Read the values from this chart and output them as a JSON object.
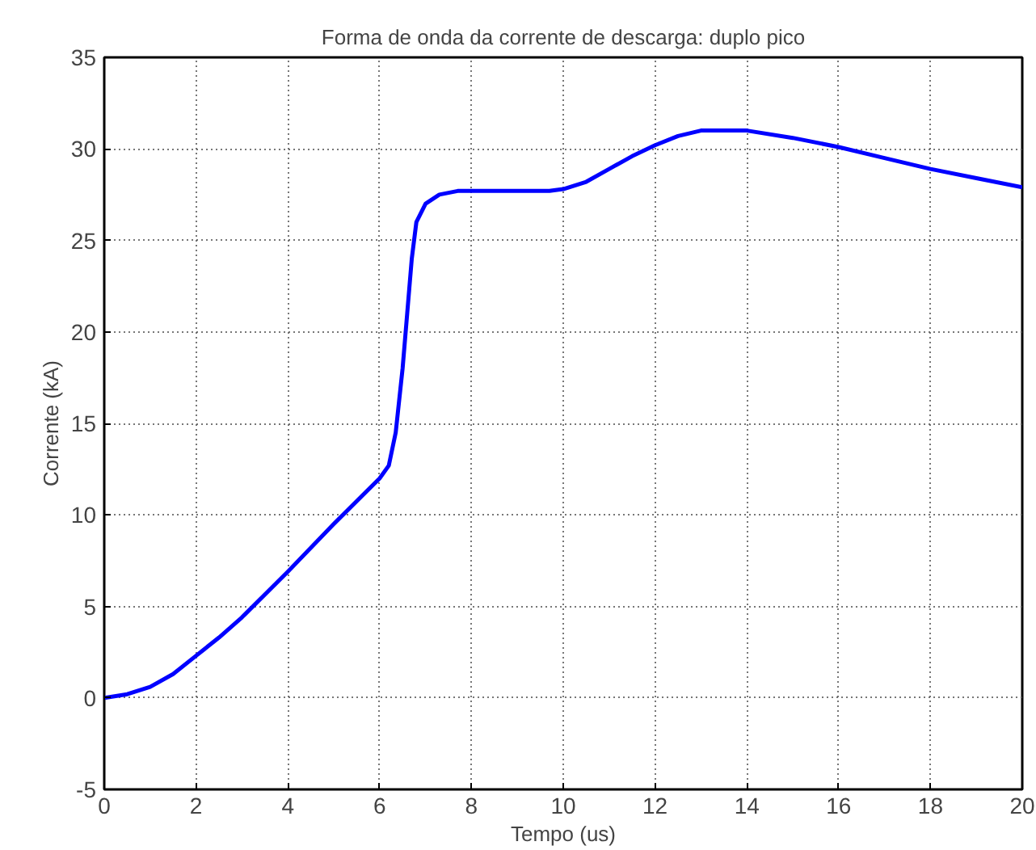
{
  "chart_data": {
    "type": "line",
    "title": "Forma de onda da corrente de descarga: duplo pico",
    "xlabel": "Tempo (us)",
    "ylabel": "Corrente (kA)",
    "series": [
      {
        "color": "#0000ff",
        "x": [
          0,
          0.5,
          1,
          1.5,
          2,
          2.5,
          3,
          4,
          5,
          6,
          6.2,
          6.35,
          6.5,
          6.6,
          6.7,
          6.8,
          7.0,
          7.3,
          7.7,
          8,
          9,
          9.7,
          10,
          10.5,
          11,
          11.5,
          12,
          12.5,
          13,
          13.5,
          14,
          15,
          16,
          17,
          18,
          19,
          20
        ],
        "values": [
          0,
          0.2,
          0.6,
          1.3,
          2.3,
          3.3,
          4.4,
          6.9,
          9.5,
          12,
          12.7,
          14.5,
          18,
          21,
          24,
          26,
          27,
          27.5,
          27.7,
          27.7,
          27.7,
          27.7,
          27.8,
          28.2,
          28.9,
          29.6,
          30.2,
          30.7,
          31,
          31,
          31,
          30.6,
          30.1,
          29.5,
          28.9,
          28.4,
          27.9
        ]
      }
    ],
    "xlim": [
      0,
      20
    ],
    "ylim": [
      -5,
      35
    ],
    "xticks": [
      0,
      2,
      4,
      6,
      8,
      10,
      12,
      14,
      16,
      18,
      20
    ],
    "yticks": [
      -5,
      0,
      5,
      10,
      15,
      20,
      25,
      30,
      35
    ],
    "grid": true,
    "marker": "none",
    "line_style": "solid"
  }
}
